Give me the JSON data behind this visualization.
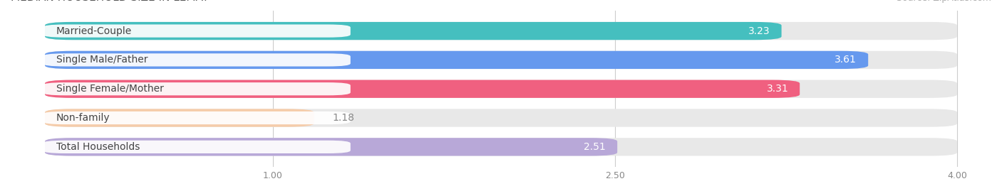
{
  "categories": [
    "Married-Couple",
    "Single Male/Father",
    "Single Female/Mother",
    "Non-family",
    "Total Households"
  ],
  "values": [
    3.23,
    3.61,
    3.31,
    1.18,
    2.51
  ],
  "bar_colors": [
    "#45bfbf",
    "#6699ee",
    "#f06080",
    "#f5ccaa",
    "#b8a8d8"
  ],
  "bar_bg_color": "#e8e8e8",
  "xlim_data": [
    0,
    4.0
  ],
  "xlim_display": [
    -0.15,
    4.15
  ],
  "xticks": [
    1.0,
    2.5,
    4.0
  ],
  "label_color_inside": "#ffffff",
  "label_color_outside": "#888888",
  "title_fontsize": 11,
  "source_fontsize": 9,
  "bar_label_fontsize": 10,
  "category_fontsize": 10,
  "bar_height": 0.62,
  "fig_bg_color": "#ffffff",
  "row_bg_color": "#f0f0f0",
  "outside_threshold": 1.8
}
